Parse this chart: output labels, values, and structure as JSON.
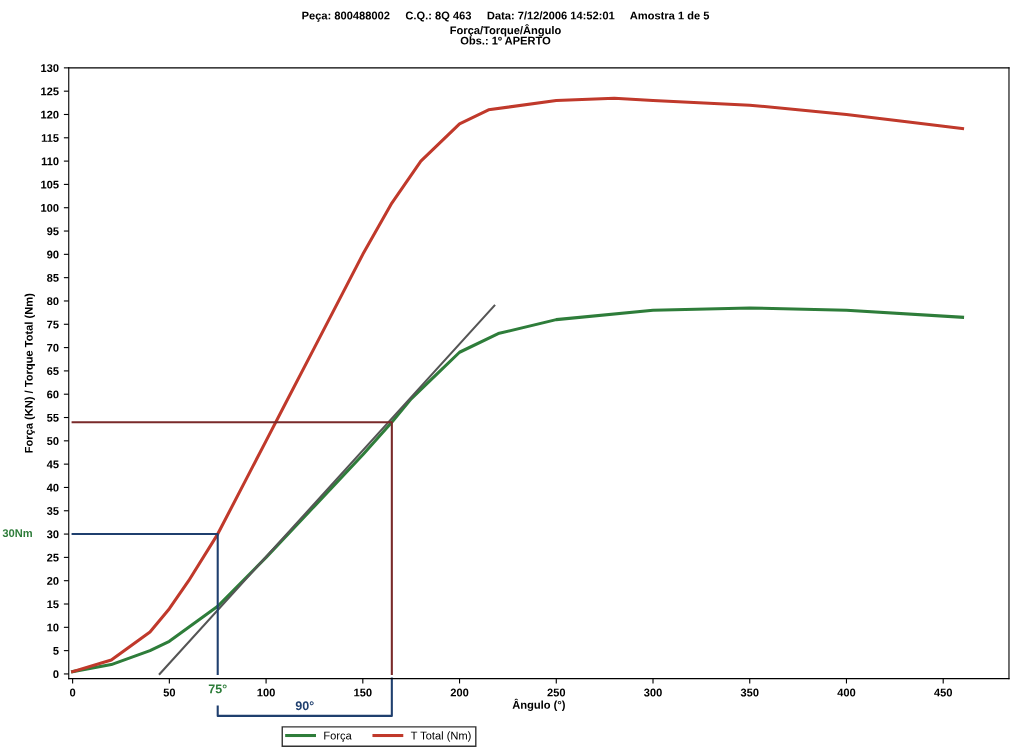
{
  "chart_data": {
    "type": "line",
    "title": "Peça: 800488002     C.Q.: 8Q 463     Data: 7/12/2006 14:52:01     Amostra 1 de 5",
    "subtitle": "Força/Torque/Ângulo\nObs.: 1º APERTO",
    "xlabel": "Ângulo (°)",
    "ylabel": "Força (KN) / Torque Total (Nm)",
    "series": [
      {
        "name": "Força",
        "color": "#2e7d3a",
        "x": [
          0,
          20,
          40,
          50,
          60,
          75,
          100,
          125,
          150,
          165,
          175,
          190,
          200,
          220,
          250,
          300,
          350,
          400,
          460
        ],
        "values": [
          0.5,
          2,
          5,
          7,
          10,
          14.5,
          25,
          36,
          47,
          54,
          59,
          65,
          69,
          73,
          76,
          78,
          78.5,
          78,
          76.5
        ]
      },
      {
        "name": "T Total (Nm)",
        "color": "#c0392b",
        "x": [
          0,
          20,
          40,
          50,
          60,
          75,
          90,
          100,
          110,
          125,
          140,
          150,
          165,
          180,
          200,
          215,
          250,
          280,
          300,
          350,
          400,
          430,
          460
        ],
        "values": [
          0.5,
          3,
          9,
          14,
          20,
          30,
          42,
          50,
          58,
          70,
          82,
          90,
          101,
          110,
          118,
          121,
          123,
          123.5,
          123,
          122,
          120,
          118.5,
          117
        ]
      },
      {
        "color": "#555555",
        "x": [
          45,
          218
        ],
        "values": [
          0,
          79
        ]
      },
      {
        "color": "#1f3f6e",
        "x": [
          0,
          75,
          75
        ],
        "values": [
          30,
          30,
          0
        ]
      },
      {
        "color": "#7a2a2a",
        "x": [
          0,
          165,
          165
        ],
        "values": [
          54,
          54,
          0
        ]
      }
    ],
    "annotations": [
      "30Nm",
      "75°",
      "90°"
    ],
    "xlim": [
      -2,
      484
    ],
    "ylim": [
      -1,
      130
    ],
    "xticks": [
      0,
      50,
      100,
      150,
      200,
      250,
      300,
      350,
      400,
      450
    ],
    "yticks": [
      0,
      5,
      10,
      15,
      20,
      25,
      30,
      35,
      40,
      45,
      50,
      55,
      60,
      65,
      70,
      75,
      80,
      85,
      90,
      95,
      100,
      105,
      110,
      115,
      120,
      125,
      130
    ],
    "legend": "bottom",
    "line_style": "solid",
    "marker": "none"
  }
}
